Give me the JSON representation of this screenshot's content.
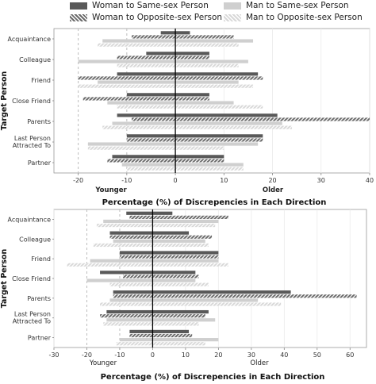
{
  "legend": [
    {
      "label": "Woman to Same-sex Person",
      "style": "solid-dark"
    },
    {
      "label": "Woman to Opposite-sex Person",
      "style": "hatch-dark"
    },
    {
      "label": "Man to Same-sex Person",
      "style": "solid-light"
    },
    {
      "label": "Man to Opposite-sex Person",
      "style": "hatch-light"
    }
  ],
  "colors": {
    "dark": "#595959",
    "light": "#cfcfcf",
    "hatch_dark": "#6a6a6a",
    "hatch_light": "#d8d8d8"
  },
  "chart_data": [
    {
      "type": "bar",
      "orientation": "horizontal",
      "categories": [
        "Acquaintance",
        "Colleague",
        "Friend",
        "Close Friend",
        "Parents",
        "Last Person Attracted To",
        "Partner"
      ],
      "category_lines": [
        [
          "Acquaintance"
        ],
        [
          "Colleague"
        ],
        [
          "Friend"
        ],
        [
          "Close Friend"
        ],
        [
          "Parents"
        ],
        [
          "Last Person",
          "Attracted To"
        ],
        [
          "Partner"
        ]
      ],
      "ylabel": "Target Person",
      "xlabel": "Percentage (%) of Discrepencies in Each Direction",
      "xlim": [
        -25,
        40
      ],
      "xticks": [
        -20,
        -10,
        0,
        10,
        20,
        30,
        40
      ],
      "direction_labels": {
        "left": "Younger",
        "right": "Older"
      },
      "grid": "vertical",
      "series": [
        {
          "name": "Woman to Same-sex Person",
          "style": "solid-dark",
          "younger": [
            -3,
            -6,
            -12,
            -10,
            -12,
            -10,
            -13
          ],
          "older": [
            3,
            7,
            17,
            7,
            21,
            18,
            10
          ]
        },
        {
          "name": "Woman to Opposite-sex Person",
          "style": "hatch-dark",
          "younger": [
            -9,
            -12,
            -20,
            -19,
            -9,
            -10,
            -14
          ],
          "older": [
            12,
            7,
            18,
            7,
            40,
            18,
            10
          ]
        },
        {
          "name": "Man to Same-sex Person",
          "style": "solid-light",
          "younger": [
            -15,
            -20,
            -16,
            -14,
            -13,
            -18,
            -11
          ],
          "older": [
            16,
            15,
            13,
            12,
            22,
            17,
            14
          ]
        },
        {
          "name": "Man to Opposite-sex Person",
          "style": "hatch-light",
          "younger": [
            -16,
            -12,
            -20,
            -12,
            -15,
            -18,
            -10
          ],
          "older": [
            13,
            13,
            16,
            18,
            24,
            10,
            14
          ]
        }
      ]
    },
    {
      "type": "bar",
      "orientation": "horizontal",
      "categories": [
        "Acquaintance",
        "Colleague",
        "Friend",
        "Close Friend",
        "Parents",
        "Last Person Attracted To",
        "Partner"
      ],
      "category_lines": [
        [
          "Acquaintance"
        ],
        [
          "Colleague"
        ],
        [
          "Friend"
        ],
        [
          "Close Friend"
        ],
        [
          "Parents"
        ],
        [
          "Last Person",
          "Attracted To"
        ],
        [
          "Partner"
        ]
      ],
      "ylabel": "Target Person",
      "xlabel": "Percentage (%) of Discrepencies in Each Direction",
      "xlim": [
        -30,
        65
      ],
      "xticks": [
        -30,
        -20,
        -10,
        0,
        10,
        20,
        30,
        40,
        50,
        60
      ],
      "direction_labels": {
        "left": "Younger",
        "right": "Older"
      },
      "grid": "vertical",
      "series": [
        {
          "name": "Woman to Same-sex Person",
          "style": "solid-dark",
          "younger": [
            -8,
            -13,
            -10,
            -16,
            -12,
            -14,
            -7
          ],
          "older": [
            6,
            11,
            20,
            13,
            42,
            17,
            11
          ]
        },
        {
          "name": "Woman to Opposite-sex Person",
          "style": "hatch-dark",
          "younger": [
            -7,
            -13,
            -10,
            -9,
            -12,
            -16,
            -7
          ],
          "older": [
            23,
            18,
            20,
            14,
            62,
            16,
            12
          ]
        },
        {
          "name": "Man to Same-sex Person",
          "style": "solid-light",
          "younger": [
            -15,
            -12,
            -19,
            -20,
            -13,
            -14,
            -10
          ],
          "older": [
            20,
            16,
            20,
            13,
            32,
            19,
            20
          ]
        },
        {
          "name": "Man to Opposite-sex Person",
          "style": "hatch-light",
          "younger": [
            -17,
            -18,
            -26,
            -13,
            -16,
            -15,
            -11
          ],
          "older": [
            19,
            17,
            23,
            17,
            39,
            14,
            16
          ]
        }
      ]
    }
  ]
}
